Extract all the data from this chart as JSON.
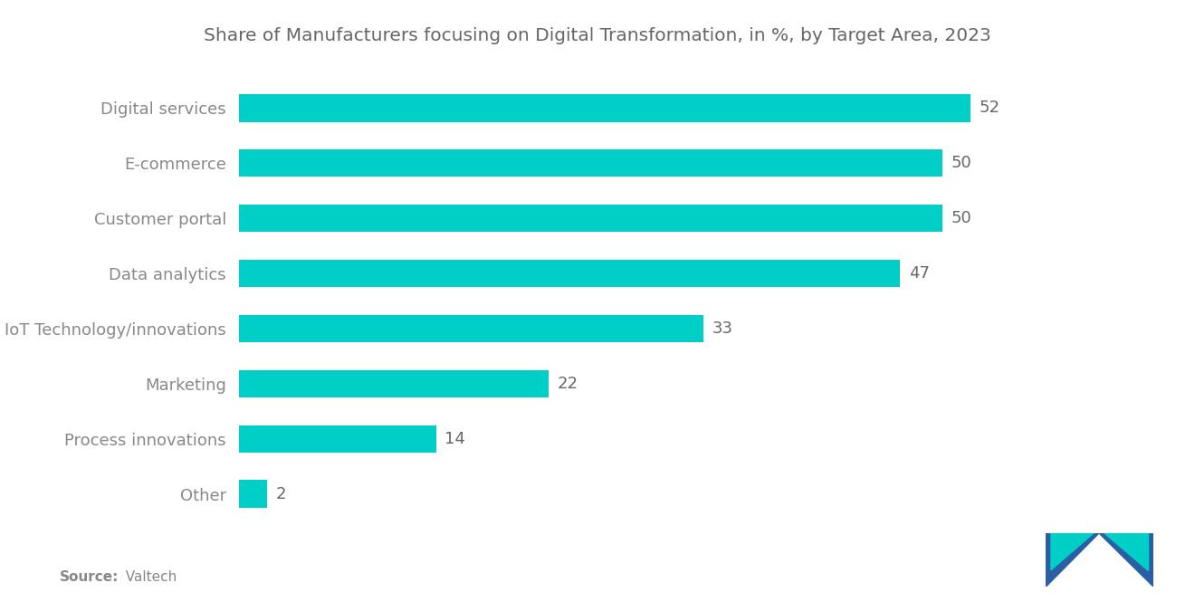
{
  "title": "Share of Manufacturers focusing on Digital Transformation, in %, by Target Area, 2023",
  "categories": [
    "Digital services",
    "E-commerce",
    "Customer portal",
    "Data analytics",
    "IoT Technology/innovations",
    "Marketing",
    "Process innovations",
    "Other"
  ],
  "values": [
    52,
    50,
    50,
    47,
    33,
    22,
    14,
    2
  ],
  "bar_color": "#00CFC7",
  "label_color": "#888888",
  "value_color": "#666666",
  "title_color": "#666666",
  "background_color": "#ffffff",
  "source_bold": "Source:",
  "source_rest": "  Valtech",
  "title_fontsize": 14.5,
  "label_fontsize": 13,
  "value_fontsize": 13,
  "source_fontsize": 11,
  "xlim": [
    0,
    62
  ],
  "bar_height": 0.5
}
